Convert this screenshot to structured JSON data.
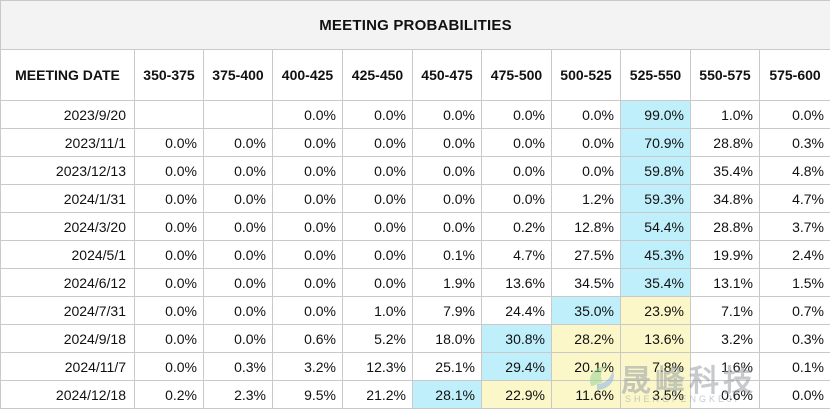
{
  "title": "MEETING PROBABILITIES",
  "columns": [
    "MEETING DATE",
    "350-375",
    "375-400",
    "400-425",
    "425-450",
    "450-475",
    "475-500",
    "500-525",
    "525-550",
    "550-575",
    "575-600"
  ],
  "rows": [
    {
      "cells": [
        "2023/9/20",
        "",
        "",
        "0.0%",
        "0.0%",
        "0.0%",
        "0.0%",
        "0.0%",
        "99.0%",
        "1.0%",
        "0.0%"
      ],
      "hl": {
        "8": "blue"
      }
    },
    {
      "cells": [
        "2023/11/1",
        "0.0%",
        "0.0%",
        "0.0%",
        "0.0%",
        "0.0%",
        "0.0%",
        "0.0%",
        "70.9%",
        "28.8%",
        "0.3%"
      ],
      "hl": {
        "8": "blue"
      }
    },
    {
      "cells": [
        "2023/12/13",
        "0.0%",
        "0.0%",
        "0.0%",
        "0.0%",
        "0.0%",
        "0.0%",
        "0.0%",
        "59.8%",
        "35.4%",
        "4.8%"
      ],
      "hl": {
        "8": "blue"
      }
    },
    {
      "cells": [
        "2024/1/31",
        "0.0%",
        "0.0%",
        "0.0%",
        "0.0%",
        "0.0%",
        "0.0%",
        "1.2%",
        "59.3%",
        "34.8%",
        "4.7%"
      ],
      "hl": {
        "8": "blue"
      }
    },
    {
      "cells": [
        "2024/3/20",
        "0.0%",
        "0.0%",
        "0.0%",
        "0.0%",
        "0.0%",
        "0.2%",
        "12.8%",
        "54.4%",
        "28.8%",
        "3.7%"
      ],
      "hl": {
        "8": "blue"
      }
    },
    {
      "cells": [
        "2024/5/1",
        "0.0%",
        "0.0%",
        "0.0%",
        "0.0%",
        "0.1%",
        "4.7%",
        "27.5%",
        "45.3%",
        "19.9%",
        "2.4%"
      ],
      "hl": {
        "8": "blue"
      }
    },
    {
      "cells": [
        "2024/6/12",
        "0.0%",
        "0.0%",
        "0.0%",
        "0.0%",
        "1.9%",
        "13.6%",
        "34.5%",
        "35.4%",
        "13.1%",
        "1.5%"
      ],
      "hl": {
        "8": "blue"
      }
    },
    {
      "cells": [
        "2024/7/31",
        "0.0%",
        "0.0%",
        "0.0%",
        "1.0%",
        "7.9%",
        "24.4%",
        "35.0%",
        "23.9%",
        "7.1%",
        "0.7%"
      ],
      "hl": {
        "7": "blue",
        "8": "yellow"
      }
    },
    {
      "cells": [
        "2024/9/18",
        "0.0%",
        "0.0%",
        "0.6%",
        "5.2%",
        "18.0%",
        "30.8%",
        "28.2%",
        "13.6%",
        "3.2%",
        "0.3%"
      ],
      "hl": {
        "6": "blue",
        "7": "yellow",
        "8": "yellow"
      }
    },
    {
      "cells": [
        "2024/11/7",
        "0.0%",
        "0.3%",
        "3.2%",
        "12.3%",
        "25.1%",
        "29.4%",
        "20.1%",
        "7.8%",
        "1.6%",
        "0.1%"
      ],
      "hl": {
        "6": "blue",
        "7": "yellow",
        "8": "yellow"
      }
    },
    {
      "cells": [
        "2024/12/18",
        "0.2%",
        "2.3%",
        "9.5%",
        "21.2%",
        "28.1%",
        "22.9%",
        "11.6%",
        "3.5%",
        "0.6%",
        "0.0%"
      ],
      "hl": {
        "5": "blue",
        "6": "yellow",
        "7": "yellow",
        "8": "yellow"
      }
    }
  ],
  "colors": {
    "highlight_blue": "#bfeffa",
    "highlight_yellow": "#fbf7c8",
    "title_bg": "#f3f3f3"
  },
  "watermark": {
    "text_zh": "晟峰科技",
    "text_en": "SHENGFENGKEJI",
    "icon": "leaf-swirl-logo"
  }
}
